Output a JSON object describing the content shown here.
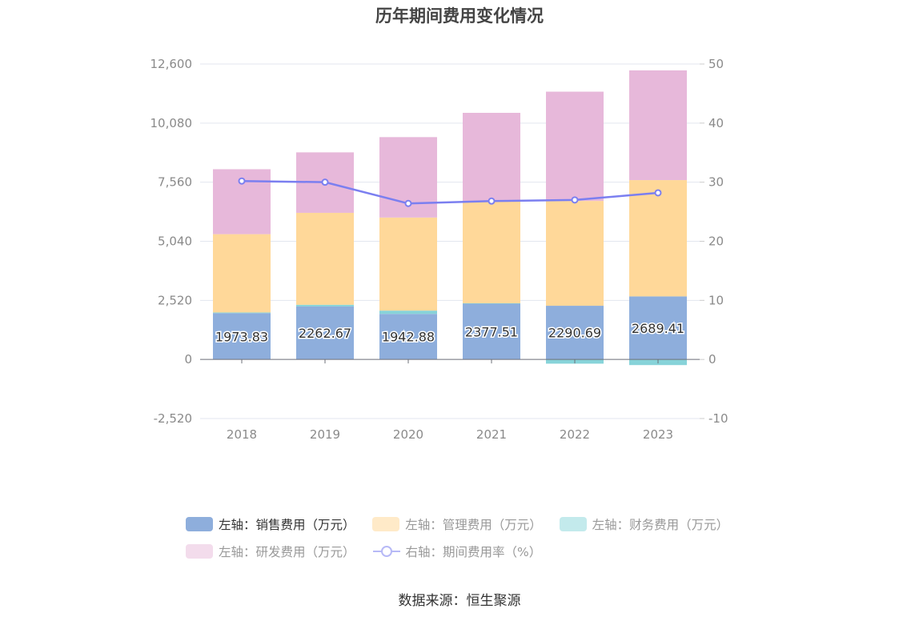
{
  "title": "历年期间费用变化情况",
  "source": "数据来源：恒生聚源",
  "colors": {
    "sales": "#8eaedc",
    "admin": "#ffd899",
    "finance": "#87d3d9",
    "rd": "#e7b8da",
    "ratio": "#7b7ff0",
    "grid": "#e3e6ef",
    "axis_text": "#8a8a8a"
  },
  "legend": [
    {
      "label": "左轴：销售费用（万元）",
      "series": "sales",
      "type": "bar",
      "swatch": "#8eaedc",
      "active": true
    },
    {
      "label": "左轴：管理费用（万元）",
      "series": "admin",
      "type": "bar",
      "swatch": "#ffeac8",
      "active": false
    },
    {
      "label": "左轴：财务费用（万元）",
      "series": "finance",
      "type": "bar",
      "swatch": "#c3eaec",
      "active": false
    },
    {
      "label": "左轴：研发费用（万元）",
      "series": "rd",
      "type": "bar",
      "swatch": "#f3dcec",
      "active": false
    },
    {
      "label": "右轴：期间费用率（%）",
      "series": "ratio",
      "type": "line",
      "swatch": "#7b7ff0",
      "active": false
    }
  ],
  "chart_data": {
    "type": "bar",
    "stacked": true,
    "categories": [
      "2018",
      "2019",
      "2020",
      "2021",
      "2022",
      "2023"
    ],
    "y_left": {
      "ticks": [
        "12,600",
        "10,080",
        "7,560",
        "5,040",
        "2,520",
        "0",
        "-2,520"
      ],
      "min": -2520,
      "max": 12600
    },
    "y_right": {
      "ticks": [
        "50",
        "40",
        "30",
        "20",
        "10",
        "0",
        "-10"
      ],
      "min": -10,
      "max": 50
    },
    "series": [
      {
        "name": "左轴：销售费用（万元）",
        "key": "sales",
        "axis": "left",
        "values": [
          1973.83,
          2262.67,
          1942.88,
          2377.51,
          2290.69,
          2689.41
        ],
        "labels": [
          "1973.83",
          "2262.67",
          "1942.88",
          "2377.51",
          "2290.69",
          "2689.41"
        ]
      },
      {
        "name": "左轴：财务费用（万元）",
        "key": "finance",
        "axis": "left",
        "values": [
          30,
          70,
          140,
          20,
          -180,
          -240
        ]
      },
      {
        "name": "左轴：管理费用（万元）",
        "key": "admin",
        "axis": "left",
        "values": [
          3340,
          3920,
          3970,
          4360,
          4470,
          4960
        ]
      },
      {
        "name": "左轴：研发费用（万元）",
        "key": "rd",
        "axis": "left",
        "values": [
          2770,
          2580,
          3430,
          3760,
          4660,
          4680
        ]
      },
      {
        "name": "右轴：期间费用率（%）",
        "key": "ratio",
        "axis": "right",
        "type": "line",
        "values": [
          30.2,
          30.0,
          26.4,
          26.8,
          27.0,
          28.2
        ]
      }
    ],
    "grid": true,
    "legend_position": "bottom"
  }
}
